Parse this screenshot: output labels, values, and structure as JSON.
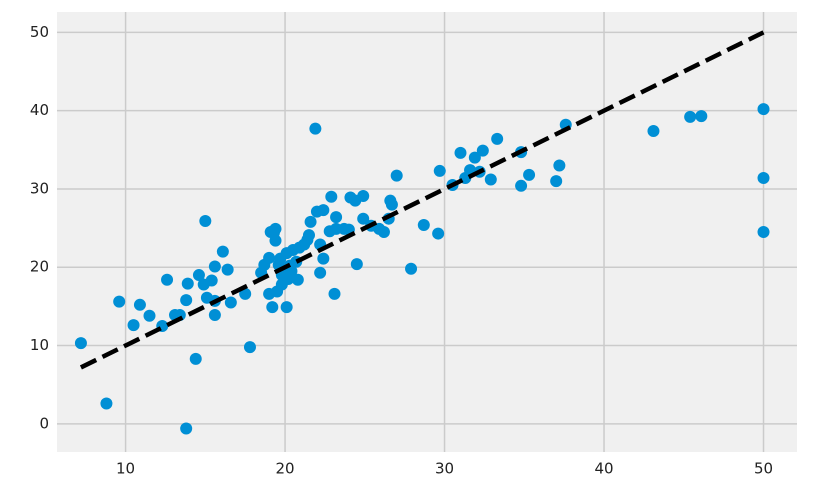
{
  "chart_data": {
    "type": "scatter",
    "xlim": [
      5.7,
      52.1
    ],
    "ylim": [
      -3.6,
      52.6
    ],
    "xticks": [
      10,
      20,
      30,
      40,
      50
    ],
    "yticks": [
      0,
      10,
      20,
      30,
      40,
      50
    ],
    "grid": true,
    "series": [
      {
        "color": "#008fd5",
        "x": [
          7.2,
          8.8,
          9.6,
          10.5,
          10.9,
          11.5,
          12.3,
          12.6,
          13.1,
          13.4,
          13.8,
          13.9,
          13.8,
          14.4,
          14.6,
          14.9,
          15.0,
          15.1,
          15.4,
          15.6,
          15.6,
          15.6,
          16.1,
          16.4,
          16.6,
          17.5,
          17.8,
          18.5,
          18.7,
          19.0,
          19.0,
          19.1,
          19.2,
          19.3,
          19.4,
          19.4,
          19.5,
          19.6,
          19.7,
          19.8,
          19.8,
          20.0,
          20.1,
          20.1,
          20.2,
          20.3,
          20.4,
          20.5,
          20.7,
          20.8,
          20.9,
          21.2,
          21.4,
          21.5,
          21.6,
          21.9,
          22.0,
          22.2,
          22.2,
          22.4,
          22.4,
          22.8,
          22.9,
          23.1,
          23.2,
          23.2,
          23.7,
          24.0,
          24.1,
          24.4,
          24.5,
          24.9,
          24.9,
          25.4,
          25.9,
          26.2,
          26.5,
          26.6,
          26.7,
          27.0,
          27.9,
          28.7,
          29.6,
          29.7,
          30.5,
          31.0,
          31.3,
          31.6,
          31.9,
          32.2,
          32.4,
          32.9,
          33.3,
          34.8,
          34.8,
          35.3,
          37.0,
          37.2,
          37.6,
          43.1,
          45.4,
          46.1,
          50,
          50,
          50
        ],
        "values": [
          10.3,
          2.6,
          15.6,
          12.6,
          15.2,
          13.8,
          12.5,
          18.4,
          13.9,
          13.9,
          -0.6,
          17.9,
          15.8,
          8.3,
          19.0,
          17.8,
          25.9,
          16.1,
          18.3,
          20.1,
          13.9,
          15.7,
          22.0,
          19.7,
          15.5,
          16.6,
          9.8,
          19.3,
          20.3,
          21.2,
          16.6,
          24.5,
          14.9,
          24.4,
          24.9,
          23.4,
          16.9,
          20.3,
          21.1,
          19.0,
          17.8,
          19.5,
          14.9,
          21.8,
          18.5,
          20.2,
          19.5,
          22.2,
          20.7,
          18.4,
          22.5,
          22.9,
          23.5,
          24.1,
          25.8,
          37.7,
          27.1,
          22.9,
          19.3,
          21.1,
          27.3,
          24.6,
          29.0,
          16.6,
          26.4,
          24.9,
          24.9,
          24.8,
          28.9,
          28.5,
          20.4,
          29.1,
          26.2,
          25.3,
          24.9,
          24.5,
          26.2,
          28.5,
          28.0,
          31.7,
          19.8,
          25.4,
          24.3,
          32.3,
          30.5,
          34.6,
          31.4,
          32.4,
          34.0,
          32.2,
          34.9,
          31.2,
          36.4,
          34.7,
          30.4,
          31.8,
          31.0,
          33.0,
          38.2,
          37.4,
          39.2,
          39.3,
          40.2,
          31.4,
          24.5
        ]
      }
    ],
    "reference_line": {
      "x": [
        7.2,
        50
      ],
      "values": [
        7.2,
        50
      ],
      "color": "#000000",
      "style": "dashed"
    }
  }
}
